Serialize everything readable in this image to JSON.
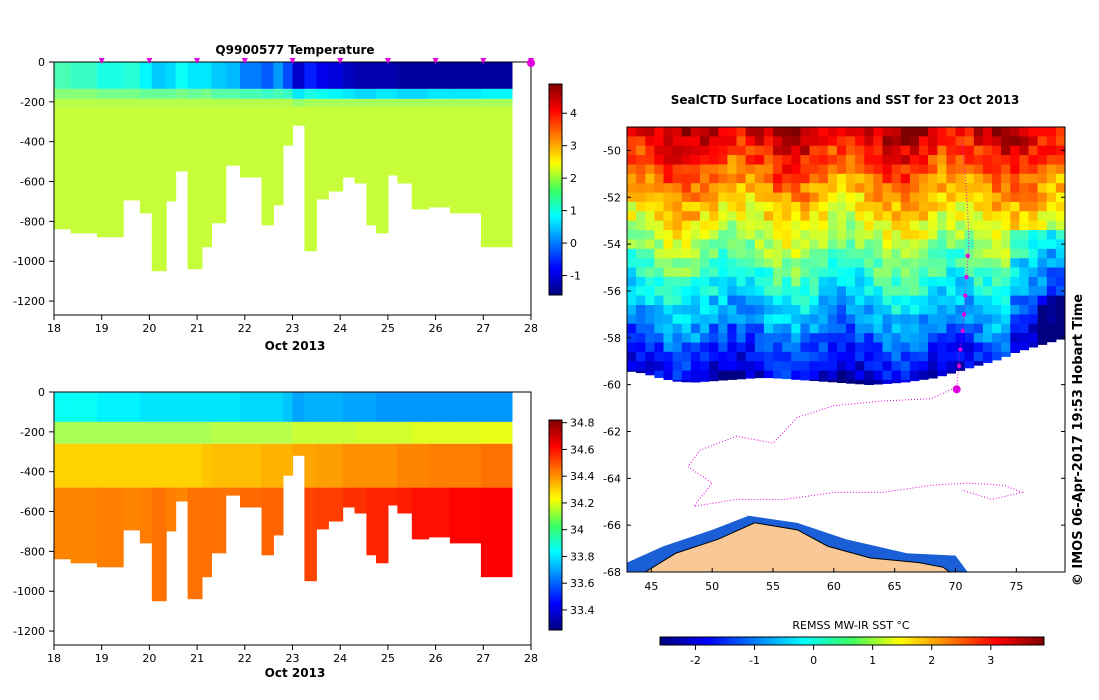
{
  "chart_data": [
    {
      "type": "heatmap",
      "title": "Q9900577  Temperature",
      "xlabel": "Oct 2013",
      "ylabel": "",
      "x_ticks": [
        "18",
        "19",
        "20",
        "21",
        "22",
        "23",
        "24",
        "25",
        "26",
        "27",
        "28"
      ],
      "xlim": [
        18,
        28
      ],
      "y_ticks": [
        "0",
        "-200",
        "-400",
        "-600",
        "-800",
        "-1000",
        "-1200"
      ],
      "ylim": [
        -1270,
        0
      ],
      "profile_markers_x": [
        19,
        20,
        21,
        22,
        23,
        24,
        25,
        26,
        27,
        28
      ],
      "colorbar": {
        "ticks": [
          "4",
          "3",
          "2",
          "1",
          "0",
          "-1"
        ],
        "range": [
          -1.6,
          4.9
        ]
      },
      "profiles": [
        {
          "x0": 18.0,
          "x1": 18.35,
          "bottom": -840,
          "vals": [
            1.3,
            1.7,
            2.0,
            2.1
          ]
        },
        {
          "x0": 18.35,
          "x1": 18.9,
          "bottom": -860,
          "vals": [
            1.2,
            1.7,
            2.0,
            2.1
          ]
        },
        {
          "x0": 18.9,
          "x1": 19.45,
          "bottom": -880,
          "vals": [
            1.0,
            1.6,
            2.0,
            2.1
          ]
        },
        {
          "x0": 19.45,
          "x1": 19.8,
          "bottom": -695,
          "vals": [
            1.1,
            1.6,
            2.0,
            2.1
          ]
        },
        {
          "x0": 19.8,
          "x1": 20.05,
          "bottom": -760,
          "vals": [
            0.8,
            1.5,
            2.0,
            2.1
          ]
        },
        {
          "x0": 20.05,
          "x1": 20.35,
          "bottom": -1050,
          "vals": [
            0.5,
            1.5,
            2.0,
            2.1
          ]
        },
        {
          "x0": 20.35,
          "x1": 20.55,
          "bottom": -700,
          "vals": [
            0.6,
            1.5,
            2.0,
            2.1
          ]
        },
        {
          "x0": 20.55,
          "x1": 20.8,
          "bottom": -550,
          "vals": [
            0.9,
            1.6,
            2.0,
            2.1
          ]
        },
        {
          "x0": 20.8,
          "x1": 21.1,
          "bottom": -1040,
          "vals": [
            0.7,
            1.5,
            2.0,
            2.1
          ]
        },
        {
          "x0": 21.1,
          "x1": 21.3,
          "bottom": -930,
          "vals": [
            0.7,
            1.6,
            2.0,
            2.1
          ]
        },
        {
          "x0": 21.3,
          "x1": 21.6,
          "bottom": -810,
          "vals": [
            0.5,
            1.4,
            2.0,
            2.1
          ]
        },
        {
          "x0": 21.6,
          "x1": 21.9,
          "bottom": -520,
          "vals": [
            0.4,
            1.4,
            2.0,
            2.1
          ]
        },
        {
          "x0": 21.9,
          "x1": 22.35,
          "bottom": -580,
          "vals": [
            0.0,
            1.3,
            2.0,
            2.1
          ]
        },
        {
          "x0": 22.35,
          "x1": 22.6,
          "bottom": -820,
          "vals": [
            -0.2,
            1.2,
            2.0,
            2.1
          ]
        },
        {
          "x0": 22.6,
          "x1": 22.8,
          "bottom": -720,
          "vals": [
            0.2,
            1.3,
            2.0,
            2.1
          ]
        },
        {
          "x0": 22.8,
          "x1": 23.0,
          "bottom": -420,
          "vals": [
            -0.3,
            1.2,
            2.0,
            2.1
          ]
        },
        {
          "x0": 23.0,
          "x1": 23.25,
          "bottom": -320,
          "vals": [
            -1.1,
            0.7,
            1.8,
            2.1
          ]
        },
        {
          "x0": 23.25,
          "x1": 23.5,
          "bottom": -950,
          "vals": [
            -0.6,
            1.0,
            1.9,
            2.1
          ]
        },
        {
          "x0": 23.5,
          "x1": 23.75,
          "bottom": -690,
          "vals": [
            -0.9,
            0.9,
            1.9,
            2.1
          ]
        },
        {
          "x0": 23.75,
          "x1": 24.05,
          "bottom": -650,
          "vals": [
            -1.0,
            0.8,
            1.9,
            2.1
          ]
        },
        {
          "x0": 24.05,
          "x1": 24.3,
          "bottom": -580,
          "vals": [
            -1.2,
            0.7,
            1.9,
            2.1
          ]
        },
        {
          "x0": 24.3,
          "x1": 24.55,
          "bottom": -610,
          "vals": [
            -1.3,
            0.6,
            1.9,
            2.1
          ]
        },
        {
          "x0": 24.55,
          "x1": 24.75,
          "bottom": -820,
          "vals": [
            -1.3,
            0.6,
            1.9,
            2.1
          ]
        },
        {
          "x0": 24.75,
          "x1": 25.0,
          "bottom": -860,
          "vals": [
            -1.3,
            0.7,
            1.9,
            2.1
          ]
        },
        {
          "x0": 25.0,
          "x1": 25.2,
          "bottom": -570,
          "vals": [
            -1.3,
            0.7,
            1.9,
            2.1
          ]
        },
        {
          "x0": 25.2,
          "x1": 25.5,
          "bottom": -610,
          "vals": [
            -1.4,
            0.6,
            1.9,
            2.1
          ]
        },
        {
          "x0": 25.5,
          "x1": 25.85,
          "bottom": -740,
          "vals": [
            -1.4,
            0.6,
            1.9,
            2.1
          ]
        },
        {
          "x0": 25.85,
          "x1": 26.3,
          "bottom": -730,
          "vals": [
            -1.4,
            0.7,
            1.9,
            2.1
          ]
        },
        {
          "x0": 26.3,
          "x1": 26.95,
          "bottom": -760,
          "vals": [
            -1.4,
            0.7,
            1.9,
            2.1
          ]
        },
        {
          "x0": 26.95,
          "x1": 27.6,
          "bottom": -930,
          "vals": [
            -1.4,
            0.8,
            1.9,
            2.1
          ]
        }
      ]
    },
    {
      "type": "heatmap",
      "title": "",
      "xlabel": "Oct 2013",
      "x_ticks": [
        "18",
        "19",
        "20",
        "21",
        "22",
        "23",
        "24",
        "25",
        "26",
        "27",
        "28"
      ],
      "xlim": [
        18,
        28
      ],
      "y_ticks": [
        "0",
        "-200",
        "-400",
        "-600",
        "-800",
        "-1000",
        "-1200"
      ],
      "ylim": [
        -1270,
        0
      ],
      "colorbar": {
        "ticks": [
          "34.8",
          "34.6",
          "34.4",
          "34.2",
          "34",
          "33.8",
          "33.6",
          "33.4"
        ],
        "range": [
          33.25,
          34.82
        ]
      },
      "profiles": [
        {
          "x0": 18.0,
          "x1": 18.35,
          "bottom": -840,
          "vals": [
            33.85,
            34.1,
            34.3,
            34.42
          ]
        },
        {
          "x0": 18.35,
          "x1": 18.9,
          "bottom": -860,
          "vals": [
            33.85,
            34.1,
            34.3,
            34.42
          ]
        },
        {
          "x0": 18.9,
          "x1": 19.45,
          "bottom": -880,
          "vals": [
            33.82,
            34.1,
            34.3,
            34.43
          ]
        },
        {
          "x0": 19.45,
          "x1": 19.8,
          "bottom": -695,
          "vals": [
            33.82,
            34.1,
            34.3,
            34.42
          ]
        },
        {
          "x0": 19.8,
          "x1": 20.05,
          "bottom": -760,
          "vals": [
            33.8,
            34.1,
            34.3,
            34.43
          ]
        },
        {
          "x0": 20.05,
          "x1": 20.35,
          "bottom": -1050,
          "vals": [
            33.8,
            34.1,
            34.3,
            34.45
          ]
        },
        {
          "x0": 20.35,
          "x1": 20.55,
          "bottom": -700,
          "vals": [
            33.8,
            34.1,
            34.3,
            34.43
          ]
        },
        {
          "x0": 20.55,
          "x1": 20.8,
          "bottom": -550,
          "vals": [
            33.8,
            34.1,
            34.3,
            34.42
          ]
        },
        {
          "x0": 20.8,
          "x1": 21.1,
          "bottom": -1040,
          "vals": [
            33.8,
            34.1,
            34.3,
            34.45
          ]
        },
        {
          "x0": 21.1,
          "x1": 21.3,
          "bottom": -930,
          "vals": [
            33.8,
            34.1,
            34.32,
            34.45
          ]
        },
        {
          "x0": 21.3,
          "x1": 21.6,
          "bottom": -810,
          "vals": [
            33.8,
            34.12,
            34.33,
            34.45
          ]
        },
        {
          "x0": 21.6,
          "x1": 21.9,
          "bottom": -520,
          "vals": [
            33.8,
            34.12,
            34.33,
            34.45
          ]
        },
        {
          "x0": 21.9,
          "x1": 22.35,
          "bottom": -580,
          "vals": [
            33.78,
            34.12,
            34.33,
            34.46
          ]
        },
        {
          "x0": 22.35,
          "x1": 22.6,
          "bottom": -820,
          "vals": [
            33.78,
            34.12,
            34.35,
            34.47
          ]
        },
        {
          "x0": 22.6,
          "x1": 22.8,
          "bottom": -720,
          "vals": [
            33.78,
            34.12,
            34.35,
            34.47
          ]
        },
        {
          "x0": 22.8,
          "x1": 23.0,
          "bottom": -420,
          "vals": [
            33.75,
            34.12,
            34.35,
            34.47
          ]
        },
        {
          "x0": 23.0,
          "x1": 23.25,
          "bottom": -320,
          "vals": [
            33.7,
            34.15,
            34.37,
            34.5
          ]
        },
        {
          "x0": 23.25,
          "x1": 23.5,
          "bottom": -950,
          "vals": [
            33.72,
            34.15,
            34.37,
            34.52
          ]
        },
        {
          "x0": 23.5,
          "x1": 23.75,
          "bottom": -690,
          "vals": [
            33.72,
            34.15,
            34.38,
            34.53
          ]
        },
        {
          "x0": 23.75,
          "x1": 24.05,
          "bottom": -650,
          "vals": [
            33.72,
            34.15,
            34.38,
            34.53
          ]
        },
        {
          "x0": 24.05,
          "x1": 24.3,
          "bottom": -580,
          "vals": [
            33.7,
            34.15,
            34.4,
            34.55
          ]
        },
        {
          "x0": 24.3,
          "x1": 24.55,
          "bottom": -610,
          "vals": [
            33.7,
            34.16,
            34.4,
            34.55
          ]
        },
        {
          "x0": 24.55,
          "x1": 24.75,
          "bottom": -820,
          "vals": [
            33.7,
            34.16,
            34.4,
            34.57
          ]
        },
        {
          "x0": 24.75,
          "x1": 25.0,
          "bottom": -860,
          "vals": [
            33.68,
            34.16,
            34.4,
            34.57
          ]
        },
        {
          "x0": 25.0,
          "x1": 25.2,
          "bottom": -570,
          "vals": [
            33.68,
            34.16,
            34.4,
            34.57
          ]
        },
        {
          "x0": 25.2,
          "x1": 25.5,
          "bottom": -610,
          "vals": [
            33.68,
            34.16,
            34.42,
            34.58
          ]
        },
        {
          "x0": 25.5,
          "x1": 25.85,
          "bottom": -740,
          "vals": [
            33.68,
            34.18,
            34.42,
            34.6
          ]
        },
        {
          "x0": 25.85,
          "x1": 26.3,
          "bottom": -730,
          "vals": [
            33.68,
            34.18,
            34.43,
            34.6
          ]
        },
        {
          "x0": 26.3,
          "x1": 26.95,
          "bottom": -760,
          "vals": [
            33.68,
            34.18,
            34.43,
            34.62
          ]
        },
        {
          "x0": 26.95,
          "x1": 27.6,
          "bottom": -930,
          "vals": [
            33.68,
            34.2,
            34.45,
            34.63
          ]
        }
      ]
    },
    {
      "type": "heatmap",
      "title": "SealCTD Surface Locations and SST for 23 Oct 2013",
      "xlabel": "",
      "x_ticks": [
        "45",
        "50",
        "55",
        "60",
        "65",
        "70",
        "75"
      ],
      "xlim": [
        43,
        79
      ],
      "y_ticks": [
        "-50",
        "-52",
        "-54",
        "-56",
        "-58",
        "-60",
        "-62",
        "-64",
        "-66",
        "-68"
      ],
      "ylim": [
        -68,
        -49
      ],
      "colorbar": {
        "label": "REMSS MW-IR SST °C",
        "ticks": [
          "-2",
          "-1",
          "0",
          "1",
          "2",
          "3"
        ],
        "range": [
          -2.6,
          3.9
        ]
      },
      "ice_edge_lat": [
        -59.4,
        -59.5,
        -59.7,
        -59.85,
        -59.9,
        -59.85,
        -59.8,
        -59.75,
        -59.7,
        -59.7,
        -59.75,
        -59.8,
        -59.85,
        -59.9,
        -59.95,
        -60.0,
        -59.95,
        -59.9,
        -59.8,
        -59.7,
        -59.5,
        -59.3,
        -59.1,
        -58.9,
        -58.6,
        -58.4,
        -58.2,
        -58.0
      ],
      "seal_locations": [
        {
          "lon": 71.0,
          "lat": -54.5
        },
        {
          "lon": 70.9,
          "lat": -55.4
        },
        {
          "lon": 70.8,
          "lat": -56.2
        },
        {
          "lon": 70.7,
          "lat": -57.0
        },
        {
          "lon": 70.6,
          "lat": -57.7
        },
        {
          "lon": 70.4,
          "lat": -58.5
        },
        {
          "lon": 70.3,
          "lat": -59.2
        },
        {
          "lon": 70.1,
          "lat": -60.2
        }
      ],
      "side_label": "© IMOS 06-Apr-2017 19:53 Hobart Time"
    }
  ]
}
